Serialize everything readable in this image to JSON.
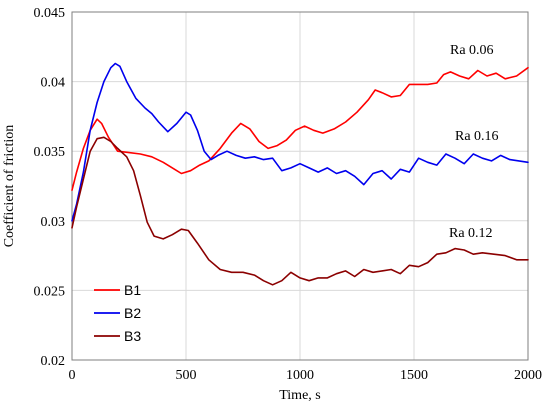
{
  "chart_data": {
    "type": "line",
    "xlabel": "Time, s",
    "ylabel": "Coefficient of friction",
    "xlim": [
      0,
      2000
    ],
    "ylim": [
      0.02,
      0.045
    ],
    "x_ticks": [
      0,
      500,
      1000,
      1500,
      2000
    ],
    "y_ticks": [
      0.02,
      0.025,
      0.03,
      0.035,
      0.04,
      0.045
    ],
    "y_tick_labels": [
      "0.02",
      "0.025",
      "0.03",
      "0.035",
      "0.04",
      "0.045"
    ],
    "grid": true,
    "legend_position": "bottom-left",
    "series": [
      {
        "name": "B1",
        "color": "#ff0000",
        "annotation": "Ra 0.06",
        "points": [
          [
            0,
            0.0322
          ],
          [
            20,
            0.0335
          ],
          [
            50,
            0.0352
          ],
          [
            80,
            0.0365
          ],
          [
            110,
            0.0373
          ],
          [
            130,
            0.037
          ],
          [
            160,
            0.036
          ],
          [
            200,
            0.035
          ],
          [
            250,
            0.0349
          ],
          [
            300,
            0.0348
          ],
          [
            350,
            0.0346
          ],
          [
            400,
            0.0342
          ],
          [
            450,
            0.0337
          ],
          [
            480,
            0.0334
          ],
          [
            520,
            0.0336
          ],
          [
            560,
            0.034
          ],
          [
            600,
            0.0343
          ],
          [
            650,
            0.0352
          ],
          [
            700,
            0.0363
          ],
          [
            740,
            0.037
          ],
          [
            780,
            0.0366
          ],
          [
            820,
            0.0357
          ],
          [
            860,
            0.0352
          ],
          [
            900,
            0.0354
          ],
          [
            940,
            0.0358
          ],
          [
            980,
            0.0365
          ],
          [
            1020,
            0.0368
          ],
          [
            1060,
            0.0365
          ],
          [
            1100,
            0.0363
          ],
          [
            1150,
            0.0366
          ],
          [
            1200,
            0.0371
          ],
          [
            1250,
            0.0378
          ],
          [
            1300,
            0.0387
          ],
          [
            1330,
            0.0394
          ],
          [
            1360,
            0.0392
          ],
          [
            1400,
            0.0389
          ],
          [
            1440,
            0.039
          ],
          [
            1480,
            0.0398
          ],
          [
            1520,
            0.0398
          ],
          [
            1560,
            0.0398
          ],
          [
            1600,
            0.0399
          ],
          [
            1630,
            0.0405
          ],
          [
            1660,
            0.0407
          ],
          [
            1700,
            0.0404
          ],
          [
            1740,
            0.0402
          ],
          [
            1780,
            0.0408
          ],
          [
            1820,
            0.0404
          ],
          [
            1860,
            0.0406
          ],
          [
            1900,
            0.0402
          ],
          [
            1950,
            0.0404
          ],
          [
            2000,
            0.041
          ]
        ]
      },
      {
        "name": "B2",
        "color": "#0000ee",
        "annotation": "Ra 0.16",
        "points": [
          [
            0,
            0.03
          ],
          [
            20,
            0.0312
          ],
          [
            50,
            0.0335
          ],
          [
            80,
            0.0365
          ],
          [
            110,
            0.0385
          ],
          [
            140,
            0.04
          ],
          [
            170,
            0.041
          ],
          [
            190,
            0.0413
          ],
          [
            210,
            0.0411
          ],
          [
            240,
            0.04
          ],
          [
            280,
            0.0388
          ],
          [
            320,
            0.0381
          ],
          [
            350,
            0.0377
          ],
          [
            380,
            0.0371
          ],
          [
            420,
            0.0364
          ],
          [
            460,
            0.037
          ],
          [
            500,
            0.0378
          ],
          [
            520,
            0.0376
          ],
          [
            550,
            0.0365
          ],
          [
            580,
            0.035
          ],
          [
            610,
            0.0344
          ],
          [
            640,
            0.0347
          ],
          [
            680,
            0.035
          ],
          [
            720,
            0.0347
          ],
          [
            760,
            0.0345
          ],
          [
            800,
            0.0346
          ],
          [
            840,
            0.0344
          ],
          [
            880,
            0.0345
          ],
          [
            920,
            0.0336
          ],
          [
            960,
            0.0338
          ],
          [
            1000,
            0.0341
          ],
          [
            1040,
            0.0338
          ],
          [
            1080,
            0.0335
          ],
          [
            1120,
            0.0338
          ],
          [
            1160,
            0.0334
          ],
          [
            1200,
            0.0336
          ],
          [
            1240,
            0.0332
          ],
          [
            1280,
            0.0326
          ],
          [
            1320,
            0.0334
          ],
          [
            1360,
            0.0336
          ],
          [
            1400,
            0.033
          ],
          [
            1440,
            0.0337
          ],
          [
            1480,
            0.0335
          ],
          [
            1520,
            0.0345
          ],
          [
            1560,
            0.0342
          ],
          [
            1600,
            0.034
          ],
          [
            1640,
            0.0348
          ],
          [
            1680,
            0.0345
          ],
          [
            1720,
            0.0341
          ],
          [
            1760,
            0.0348
          ],
          [
            1800,
            0.0345
          ],
          [
            1840,
            0.0343
          ],
          [
            1880,
            0.0347
          ],
          [
            1920,
            0.0344
          ],
          [
            1960,
            0.0343
          ],
          [
            2000,
            0.0342
          ]
        ]
      },
      {
        "name": "B3",
        "color": "#8b0000",
        "annotation": "Ra 0.12",
        "points": [
          [
            0,
            0.0295
          ],
          [
            20,
            0.031
          ],
          [
            50,
            0.033
          ],
          [
            80,
            0.035
          ],
          [
            110,
            0.0359
          ],
          [
            140,
            0.036
          ],
          [
            170,
            0.0357
          ],
          [
            200,
            0.0352
          ],
          [
            240,
            0.0346
          ],
          [
            270,
            0.0336
          ],
          [
            300,
            0.0318
          ],
          [
            330,
            0.0299
          ],
          [
            360,
            0.0289
          ],
          [
            400,
            0.0287
          ],
          [
            440,
            0.029
          ],
          [
            480,
            0.0294
          ],
          [
            510,
            0.0293
          ],
          [
            550,
            0.0284
          ],
          [
            600,
            0.0272
          ],
          [
            650,
            0.0265
          ],
          [
            700,
            0.0263
          ],
          [
            750,
            0.0263
          ],
          [
            800,
            0.0261
          ],
          [
            840,
            0.0257
          ],
          [
            880,
            0.0254
          ],
          [
            920,
            0.0257
          ],
          [
            960,
            0.0263
          ],
          [
            1000,
            0.0259
          ],
          [
            1040,
            0.0257
          ],
          [
            1080,
            0.0259
          ],
          [
            1120,
            0.0259
          ],
          [
            1160,
            0.0262
          ],
          [
            1200,
            0.0264
          ],
          [
            1240,
            0.026
          ],
          [
            1280,
            0.0265
          ],
          [
            1320,
            0.0263
          ],
          [
            1360,
            0.0264
          ],
          [
            1400,
            0.0265
          ],
          [
            1440,
            0.0262
          ],
          [
            1480,
            0.0268
          ],
          [
            1520,
            0.0267
          ],
          [
            1560,
            0.027
          ],
          [
            1600,
            0.0276
          ],
          [
            1640,
            0.0277
          ],
          [
            1680,
            0.028
          ],
          [
            1720,
            0.0279
          ],
          [
            1760,
            0.0276
          ],
          [
            1800,
            0.0277
          ],
          [
            1850,
            0.0276
          ],
          [
            1900,
            0.0275
          ],
          [
            1950,
            0.0272
          ],
          [
            2000,
            0.0272
          ]
        ]
      }
    ]
  }
}
